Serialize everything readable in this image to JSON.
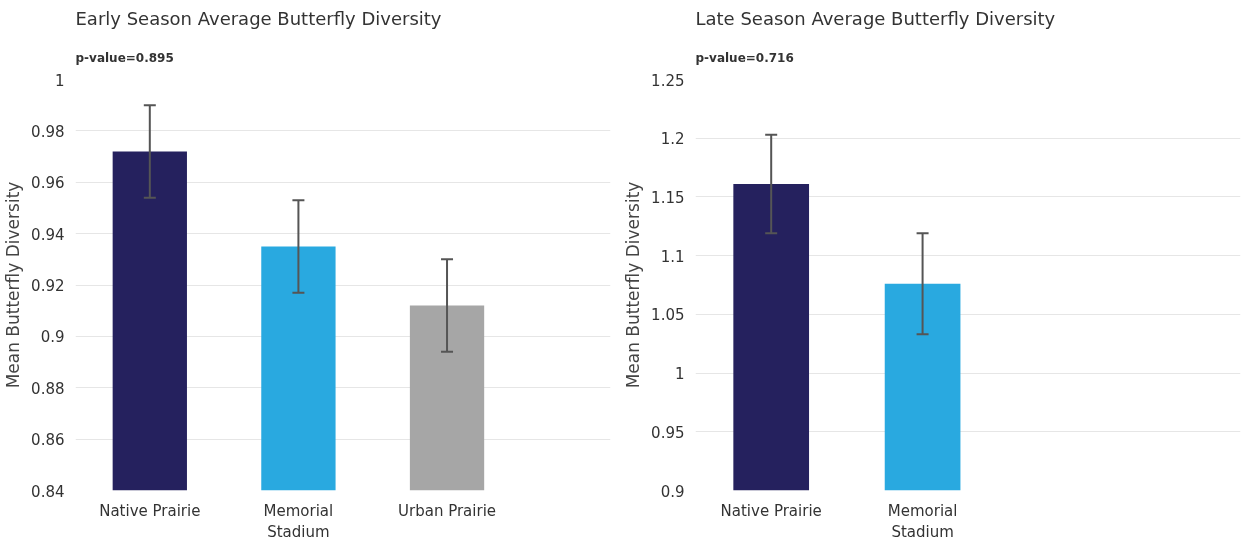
{
  "chart_data": [
    {
      "type": "bar",
      "title": "Early Season Average Butterfly Diversity",
      "subtitle": "p-value=0.895",
      "ylabel": "Mean Butterfly Diversity",
      "categories": [
        "Native Prairie",
        "Memorial\nStadium",
        "Urban Prairie"
      ],
      "values": [
        0.972,
        0.935,
        0.912
      ],
      "colors": [
        "#25215e",
        "#29a9e0",
        "#a6a6a6"
      ],
      "errors": [
        0.018,
        0.018,
        0.018
      ],
      "ylim": [
        0.84,
        1.0
      ],
      "yticks": [
        0.84,
        0.86,
        0.88,
        0.9,
        0.92,
        0.94,
        0.96,
        0.98,
        1
      ],
      "grid": "y"
    },
    {
      "type": "bar",
      "title": "Late Season Average Butterfly Diversity",
      "subtitle": "p-value=0.716",
      "ylabel": "Mean Butterfly Diversity",
      "categories": [
        "Native Prairie",
        "Memorial\nStadium"
      ],
      "values": [
        1.161,
        1.076
      ],
      "colors": [
        "#25215e",
        "#29a9e0"
      ],
      "errors": [
        0.042,
        0.043
      ],
      "ylim": [
        0.9,
        1.25
      ],
      "yticks": [
        0.9,
        0.95,
        1,
        1.05,
        1.1,
        1.15,
        1.2,
        1.25
      ],
      "grid": "y"
    }
  ]
}
